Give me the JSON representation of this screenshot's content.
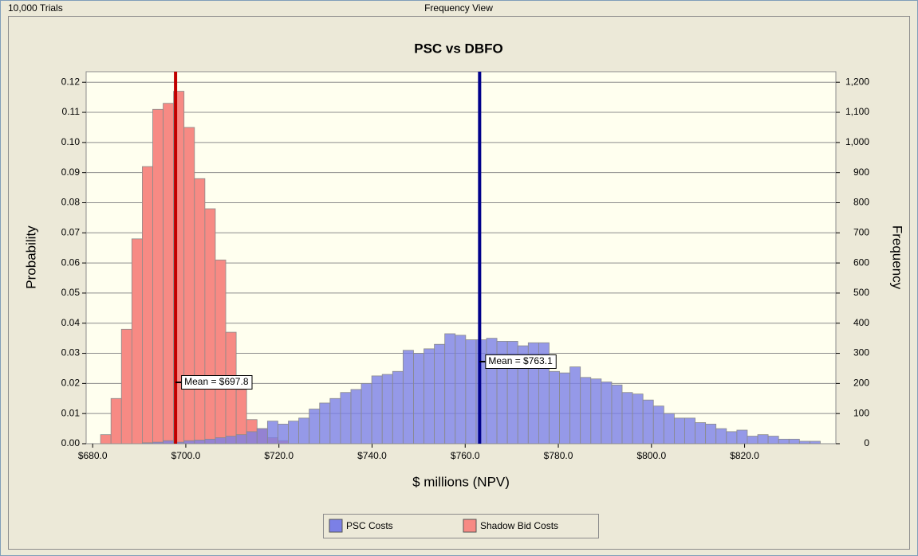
{
  "header": {
    "left": "10,000 Trials",
    "center": "Frequency View"
  },
  "chart_data": {
    "type": "histogram",
    "title": "PSC vs DBFO",
    "x_label": "$ millions (NPV)",
    "y_label": "Probability",
    "y2_label": "Frequency",
    "bins": [
      681.7,
      683.94,
      686.18,
      688.42,
      690.66,
      692.9,
      695.14,
      697.38,
      699.62,
      701.86,
      704.1,
      706.34,
      708.58,
      710.82,
      713.06,
      715.3,
      717.54,
      719.78,
      722.02,
      724.26,
      726.5,
      728.74,
      730.98,
      733.22,
      735.46,
      737.7,
      739.94,
      742.18,
      744.42,
      746.66,
      748.9,
      751.14,
      753.38,
      755.62,
      757.86,
      760.1,
      762.34,
      764.58,
      766.82,
      769.06,
      771.3,
      773.54,
      775.78,
      778.02,
      780.26,
      782.5,
      784.74,
      786.98,
      789.22,
      791.46,
      793.7,
      795.94,
      798.18,
      800.42,
      802.66,
      804.9,
      807.14,
      809.38,
      811.62,
      813.86,
      816.1,
      818.34,
      820.58,
      822.82,
      825.06,
      827.3,
      829.54,
      831.78,
      834.02,
      836.26
    ],
    "series": [
      {
        "name": "Shadow Bid Costs",
        "color": "#f78a84",
        "values": [
          0.003,
          0.015,
          0.038,
          0.068,
          0.092,
          0.111,
          0.113,
          0.117,
          0.105,
          0.088,
          0.078,
          0.061,
          0.037,
          0.018,
          0.008,
          0.005,
          0.002,
          0.001,
          0,
          0,
          0,
          0,
          0,
          0,
          0,
          0,
          0,
          0,
          0,
          0,
          0,
          0,
          0,
          0,
          0,
          0,
          0,
          0,
          0,
          0,
          0,
          0,
          0,
          0,
          0,
          0,
          0,
          0,
          0,
          0,
          0,
          0,
          0,
          0,
          0,
          0,
          0,
          0,
          0,
          0,
          0,
          0,
          0,
          0,
          0,
          0,
          0,
          0,
          0
        ]
      },
      {
        "name": "PSC Costs",
        "color": "#7b80e6",
        "values": [
          0,
          0,
          0,
          0,
          0.0003,
          0.0005,
          0.001,
          0.0005,
          0.001,
          0.0012,
          0.0015,
          0.002,
          0.0025,
          0.003,
          0.004,
          0.005,
          0.0075,
          0.0065,
          0.0075,
          0.0085,
          0.0115,
          0.0135,
          0.015,
          0.017,
          0.018,
          0.02,
          0.0225,
          0.023,
          0.024,
          0.031,
          0.03,
          0.0315,
          0.033,
          0.0365,
          0.036,
          0.0345,
          0.0345,
          0.035,
          0.034,
          0.034,
          0.0325,
          0.0335,
          0.0335,
          0.024,
          0.0235,
          0.0255,
          0.022,
          0.0215,
          0.0205,
          0.0195,
          0.017,
          0.0165,
          0.0145,
          0.0125,
          0.01,
          0.0085,
          0.0085,
          0.007,
          0.0065,
          0.005,
          0.004,
          0.0045,
          0.0025,
          0.003,
          0.0025,
          0.0015,
          0.0015,
          0.0008,
          0.0008
        ]
      }
    ],
    "mean_lines": [
      {
        "value": 697.8,
        "label": "Mean = $697.8",
        "color": "#c00000"
      },
      {
        "value": 763.1,
        "label": "Mean = $763.1",
        "color": "#00008b"
      }
    ],
    "xlim": [
      678.6,
      839.6
    ],
    "xticks": [
      {
        "value": 680,
        "label": "$680.0"
      },
      {
        "value": 700,
        "label": "$700.0"
      },
      {
        "value": 720,
        "label": "$720.0"
      },
      {
        "value": 740,
        "label": "$740.0"
      },
      {
        "value": 760,
        "label": "$760.0"
      },
      {
        "value": 780,
        "label": "$780.0"
      },
      {
        "value": 800,
        "label": "$800.0"
      },
      {
        "value": 820,
        "label": "$820.0"
      }
    ],
    "ylim": [
      0,
      0.1235
    ],
    "yticks": [
      {
        "value": 0,
        "label": "0.00"
      },
      {
        "value": 0.01,
        "label": "0.01"
      },
      {
        "value": 0.02,
        "label": "0.02"
      },
      {
        "value": 0.03,
        "label": "0.03"
      },
      {
        "value": 0.04,
        "label": "0.04"
      },
      {
        "value": 0.05,
        "label": "0.05"
      },
      {
        "value": 0.06,
        "label": "0.06"
      },
      {
        "value": 0.07,
        "label": "0.07"
      },
      {
        "value": 0.08,
        "label": "0.08"
      },
      {
        "value": 0.09,
        "label": "0.09"
      },
      {
        "value": 0.1,
        "label": "0.10"
      },
      {
        "value": 0.11,
        "label": "0.11"
      },
      {
        "value": 0.12,
        "label": "0.12"
      }
    ],
    "y2lim": [
      0,
      1235
    ],
    "y2ticks": [
      0,
      100,
      200,
      300,
      400,
      500,
      600,
      700,
      800,
      900,
      {
        "value": 1000,
        "label": "1,000"
      },
      {
        "value": 1100,
        "label": "1,100"
      },
      {
        "value": 1200,
        "label": "1,200"
      }
    ],
    "grid": true,
    "legend": "bottom"
  }
}
